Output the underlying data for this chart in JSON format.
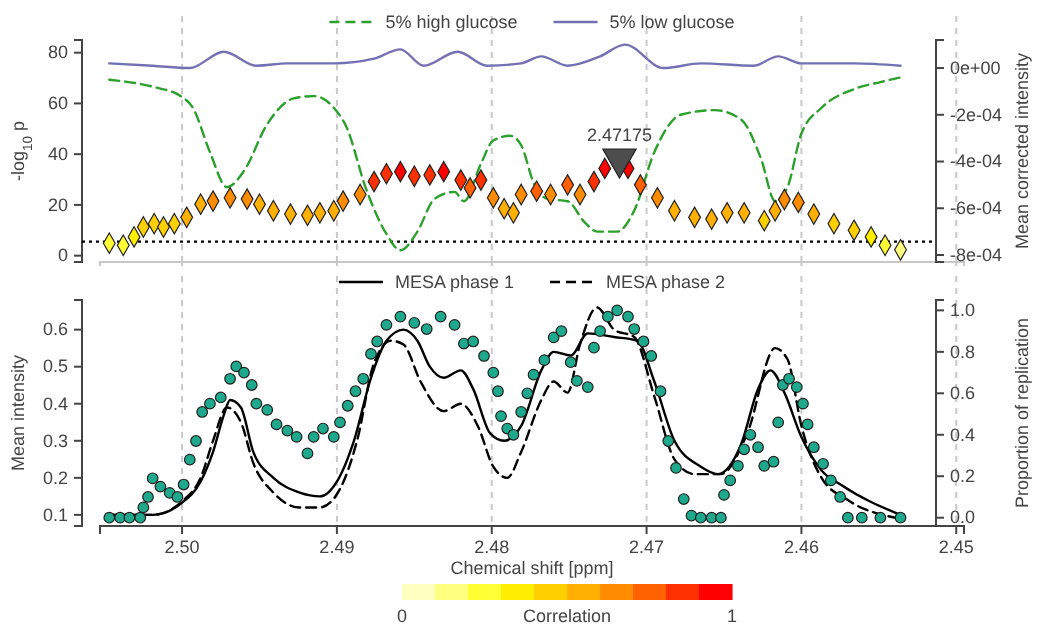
{
  "chart_data": [
    {
      "type": "scatter",
      "ylabel": "-log$_{10}$ p",
      "y2label": "Mean corrected intensity",
      "xlim": [
        2.5053,
        2.4495
      ],
      "xticks": [
        2.5,
        2.49,
        2.48,
        2.47,
        2.46,
        2.45
      ],
      "ylim": [
        -2.5,
        85
      ],
      "yticks": [
        0,
        20,
        40,
        60,
        80
      ],
      "y2lim": [
        -0.00083,
        0.00012
      ],
      "y2ticks": [
        {
          "value": 0,
          "label": "0e+00"
        },
        {
          "value": -0.0002,
          "label": "-2e-04"
        },
        {
          "value": -0.0004,
          "label": "-4e-04"
        },
        {
          "value": -0.0006,
          "label": "-6e-04"
        },
        {
          "value": -0.0008,
          "label": "-8e-04"
        }
      ],
      "tick_labels": "y",
      "grid": "x",
      "legend": "top",
      "clim": [
        0,
        1
      ],
      "cticks": [
        0,
        1
      ],
      "clabel": "Correlation",
      "ref_lines": [
        {
          "axis": "y",
          "value": 5.5,
          "line_style": "dotted",
          "color": "#000000"
        }
      ],
      "annotations": [
        {
          "text": "2.47175",
          "x": 2.47175,
          "y": 38.2
        }
      ],
      "series": [
        {
          "name": "5% high glucose",
          "type": "line",
          "axis": "y2",
          "line_style": "dashed",
          "color": "#2ca02c",
          "x": [
            2.5047,
            2.5019,
            2.5001,
            2.4993,
            2.4982,
            2.4971,
            2.496,
            2.4945,
            2.4928,
            2.4915,
            2.4902,
            2.4894,
            2.4881,
            2.4868,
            2.4859,
            2.4848,
            2.4837,
            2.4824,
            2.4818,
            2.4807,
            2.4799,
            2.4788,
            2.4781,
            2.4773,
            2.4764,
            2.4751,
            2.474,
            2.4732,
            2.4719,
            2.4708,
            2.4695,
            2.4678,
            2.4656,
            2.4639,
            2.4626,
            2.4617,
            2.4609,
            2.46,
            2.4587,
            2.4566,
            2.4549,
            2.4536
          ],
          "values": [
            -5e-05,
            -8e-05,
            -0.00012,
            -0.00017,
            -0.00036,
            -0.00051,
            -0.00044,
            -0.00024,
            -0.00013,
            -0.00012,
            -0.00017,
            -0.00025,
            -0.00052,
            -0.00071,
            -0.00078,
            -0.0007,
            -0.00056,
            -0.00053,
            -0.00057,
            -0.00041,
            -0.00031,
            -0.00029,
            -0.00033,
            -0.00049,
            -0.00056,
            -0.00057,
            -0.00066,
            -0.0007,
            -0.0007,
            -0.00061,
            -0.00036,
            -0.0002,
            -0.00018,
            -0.00022,
            -0.00039,
            -0.00057,
            -0.00051,
            -0.00028,
            -0.00017,
            -9e-05,
            -6e-05,
            -4e-05
          ]
        },
        {
          "name": "5% low glucose",
          "type": "line",
          "axis": "y2",
          "line_style": "solid",
          "color": "#7570b3",
          "x": [
            2.5047,
            2.5019,
            2.4995,
            2.4973,
            2.4952,
            2.4932,
            2.4902,
            2.4876,
            2.4859,
            2.4844,
            2.4822,
            2.4803,
            2.4781,
            2.4768,
            2.4751,
            2.473,
            2.4714,
            2.4689,
            2.4665,
            2.4631,
            2.4615,
            2.46,
            2.4566,
            2.4536
          ],
          "values": [
            2e-05,
            1e-05,
            0,
            7e-05,
            1e-05,
            2e-05,
            2e-05,
            4e-05,
            8e-05,
            1e-05,
            7e-05,
            1e-05,
            2e-05,
            5e-05,
            1e-05,
            5e-05,
            0.0001,
            0,
            2e-05,
            1e-05,
            5e-05,
            2e-05,
            2e-05,
            1e-05
          ]
        },
        {
          "marker": "diamond",
          "x": [
            2.5047,
            2.5038,
            2.5031,
            2.5025,
            2.5018,
            2.5012,
            2.5005,
            2.4997,
            2.4988,
            2.498,
            2.4969,
            2.4958,
            2.495,
            2.4941,
            2.493,
            2.4919,
            2.4911,
            2.4902,
            2.4896,
            2.4885,
            2.4876,
            2.4868,
            2.4859,
            2.485,
            2.484,
            2.4831,
            2.482,
            2.4814,
            2.4807,
            2.4799,
            2.4792,
            2.4786,
            2.4781,
            2.4771,
            2.4762,
            2.4751,
            2.4743,
            2.4734,
            2.4727,
            2.4712,
            2.4704,
            2.4693,
            2.4682,
            2.4669,
            2.4658,
            2.4648,
            2.4637,
            2.4624,
            2.4617,
            2.4611,
            2.4602,
            2.4592,
            2.4579,
            2.4566,
            2.4555,
            2.4546,
            2.4536
          ],
          "values": [
            4.9,
            4.1,
            7.4,
            11.3,
            12.6,
            11.3,
            12.6,
            15.1,
            20.3,
            21.5,
            22.8,
            22.3,
            20.3,
            17.7,
            16.4,
            15.9,
            16.9,
            17.7,
            21.5,
            24.1,
            29.2,
            32.3,
            33.1,
            31.3,
            31.8,
            33.1,
            29.8,
            26.7,
            29.8,
            22.8,
            18.5,
            16.9,
            24.1,
            25.4,
            24.1,
            27.9,
            24.1,
            29.2,
            34.4,
            34.4,
            27.9,
            22.8,
            17.7,
            15.1,
            14.4,
            16.9,
            16.9,
            13.8,
            17.7,
            22.1,
            21.0,
            16.4,
            12.6,
            10,
            7.4,
            4.1,
            2.3
          ],
          "colors": [
            "#ffff33",
            "#ffff33",
            "#ffee00",
            "#ffd000",
            "#ffd000",
            "#ffd000",
            "#ffd000",
            "#ffb000",
            "#ffb000",
            "#ff8c00",
            "#ff8c00",
            "#ff8c00",
            "#ffb000",
            "#ffb000",
            "#ffb000",
            "#ffb000",
            "#ffb000",
            "#ffb000",
            "#ff8c00",
            "#ff8c00",
            "#ff3000",
            "#ff3000",
            "#ff0000",
            "#ff3000",
            "#ff3000",
            "#ff0000",
            "#ff3000",
            "#ff6000",
            "#ff3000",
            "#ff8c00",
            "#ffb000",
            "#ffb000",
            "#ff8c00",
            "#ff6000",
            "#ff8c00",
            "#ff6000",
            "#ff8c00",
            "#ff3000",
            "#ff0000",
            "#ff0000",
            "#ff6000",
            "#ff8c00",
            "#ffb000",
            "#ffb000",
            "#ffb000",
            "#ffb000",
            "#ffb000",
            "#ffd000",
            "#ffb000",
            "#ff8c00",
            "#ff8c00",
            "#ffb000",
            "#ffd000",
            "#ffd000",
            "#ffee00",
            "#ffff33",
            "#ffff80"
          ]
        },
        {
          "marker": "triangle",
          "color": "#4d4d4d",
          "x": [
            2.47175
          ],
          "values": [
            38.2
          ]
        }
      ]
    },
    {
      "type": "line",
      "xlabel": "Chemical shift [ppm]",
      "ylabel": "Mean intensity",
      "y2label": "Proportion of replication",
      "xlim": [
        2.5053,
        2.4495
      ],
      "xticks": [
        {
          "value": 2.5,
          "label": "2.50"
        },
        2.49,
        2.48,
        2.47,
        2.46,
        {
          "value": 2.45,
          "label": "2.45"
        }
      ],
      "ylim": [
        0.07,
        0.68
      ],
      "yticks": [
        0.1,
        0.2,
        0.3,
        0.4,
        0.5,
        0.6
      ],
      "y2lim": [
        -0.04,
        1.05
      ],
      "y2ticks": [
        {
          "value": 0,
          "label": "0.0"
        },
        0.2,
        0.4,
        0.6,
        0.8,
        {
          "value": 1,
          "label": "1.0"
        }
      ],
      "grid": "x",
      "legend": "top",
      "series": [
        {
          "name": "MESA phase 1",
          "line_style": "solid",
          "color": "#000000",
          "x": [
            2.5047,
            2.5019,
            2.5001,
            2.4988,
            2.498,
            2.4973,
            2.4969,
            2.4962,
            2.4954,
            2.4941,
            2.4924,
            2.4911,
            2.49,
            2.4889,
            2.4878,
            2.4868,
            2.4857,
            2.4848,
            2.484,
            2.4831,
            2.482,
            2.4812,
            2.4801,
            2.4792,
            2.4781,
            2.4768,
            2.476,
            2.4749,
            2.4738,
            2.4721,
            2.4706,
            2.4695,
            2.4682,
            2.4665,
            2.4654,
            2.4639,
            2.4628,
            2.462,
            2.4611,
            2.46,
            2.4587,
            2.4574,
            2.4536
          ],
          "values": [
            0.1,
            0.1,
            0.13,
            0.19,
            0.27,
            0.37,
            0.41,
            0.39,
            0.27,
            0.2,
            0.16,
            0.15,
            0.19,
            0.3,
            0.47,
            0.57,
            0.6,
            0.57,
            0.5,
            0.47,
            0.49,
            0.44,
            0.32,
            0.3,
            0.34,
            0.49,
            0.54,
            0.53,
            0.59,
            0.58,
            0.57,
            0.46,
            0.3,
            0.23,
            0.21,
            0.29,
            0.44,
            0.49,
            0.43,
            0.31,
            0.22,
            0.18,
            0.1
          ]
        },
        {
          "name": "MESA phase 2",
          "line_style": "dashed",
          "color": "#000000",
          "x": [
            2.5047,
            2.5019,
            2.4999,
            2.4988,
            2.498,
            2.4971,
            2.4962,
            2.4954,
            2.4941,
            2.4924,
            2.4911,
            2.4898,
            2.4887,
            2.4876,
            2.4865,
            2.4857,
            2.4846,
            2.4831,
            2.482,
            2.4809,
            2.4799,
            2.479,
            2.4781,
            2.4768,
            2.476,
            2.4751,
            2.4743,
            2.4732,
            2.4721,
            2.4708,
            2.4695,
            2.4682,
            2.4669,
            2.4652,
            2.4635,
            2.4617,
            2.4609,
            2.46,
            2.4587,
            2.457,
            2.4536
          ],
          "values": [
            0.1,
            0.1,
            0.14,
            0.2,
            0.3,
            0.39,
            0.35,
            0.24,
            0.16,
            0.12,
            0.12,
            0.17,
            0.3,
            0.51,
            0.57,
            0.56,
            0.46,
            0.38,
            0.4,
            0.34,
            0.23,
            0.2,
            0.27,
            0.41,
            0.46,
            0.43,
            0.56,
            0.66,
            0.6,
            0.58,
            0.42,
            0.25,
            0.21,
            0.21,
            0.32,
            0.55,
            0.52,
            0.34,
            0.2,
            0.14,
            0.09
          ]
        },
        {
          "type": "scatter",
          "axis": "y2",
          "marker": "circle",
          "color": "#1fa98c",
          "x": [
            2.5047,
            2.504,
            2.5034,
            2.5027,
            2.5025,
            2.5022,
            2.5019,
            2.5014,
            2.5008,
            2.5003,
            2.4999,
            2.4995,
            2.4991,
            2.4987,
            2.4982,
            2.4975,
            2.4969,
            2.4965,
            2.496,
            2.4955,
            2.4952,
            2.4945,
            2.4939,
            2.4932,
            2.4926,
            2.4919,
            2.4915,
            2.4909,
            2.4902,
            2.4898,
            2.4893,
            2.4888,
            2.4883,
            2.4878,
            2.4874,
            2.4868,
            2.4859,
            2.485,
            2.4842,
            2.4833,
            2.4824,
            2.4818,
            2.4812,
            2.4805,
            2.4799,
            2.4796,
            2.4794,
            2.479,
            2.4786,
            2.4781,
            2.4777,
            2.4773,
            2.4766,
            2.476,
            2.4755,
            2.4749,
            2.4745,
            2.4738,
            2.4734,
            2.473,
            2.4725,
            2.4719,
            2.4712,
            2.4708,
            2.4702,
            2.4697,
            2.4691,
            2.4686,
            2.4681,
            2.4676,
            2.4671,
            2.4665,
            2.4658,
            2.4652,
            2.465,
            2.4646,
            2.4641,
            2.4637,
            2.4633,
            2.4628,
            2.4624,
            2.4618,
            2.4615,
            2.4612,
            2.4608,
            2.4603,
            2.4599,
            2.4596,
            2.4592,
            2.4586,
            2.4581,
            2.4575,
            2.457,
            2.4561,
            2.4549,
            2.4536
          ],
          "values": [
            0,
            0,
            0,
            0,
            0.05,
            0.1,
            0.19,
            0.15,
            0.12,
            0.1,
            0.16,
            0.28,
            0.37,
            0.51,
            0.55,
            0.58,
            0.67,
            0.73,
            0.7,
            0.64,
            0.55,
            0.52,
            0.45,
            0.42,
            0.39,
            0.31,
            0.39,
            0.43,
            0.39,
            0.46,
            0.54,
            0.61,
            0.67,
            0.79,
            0.85,
            0.93,
            0.97,
            0.94,
            0.91,
            0.97,
            0.93,
            0.84,
            0.85,
            0.78,
            0.7,
            0.61,
            0.49,
            0.43,
            0.4,
            0.51,
            0.6,
            0.69,
            0.76,
            0.87,
            0.9,
            0.75,
            0.66,
            0.63,
            0.82,
            0.9,
            0.97,
            1.0,
            0.97,
            0.91,
            0.85,
            0.78,
            0.61,
            0.37,
            0.24,
            0.09,
            0.01,
            0,
            0,
            0,
            0.11,
            0.18,
            0.25,
            0.33,
            0.4,
            0.34,
            0.25,
            0.27,
            0.46,
            0.64,
            0.67,
            0.63,
            0.55,
            0.45,
            0.34,
            0.26,
            0.18,
            0.1,
            0,
            0,
            0,
            0
          ]
        }
      ]
    }
  ]
}
